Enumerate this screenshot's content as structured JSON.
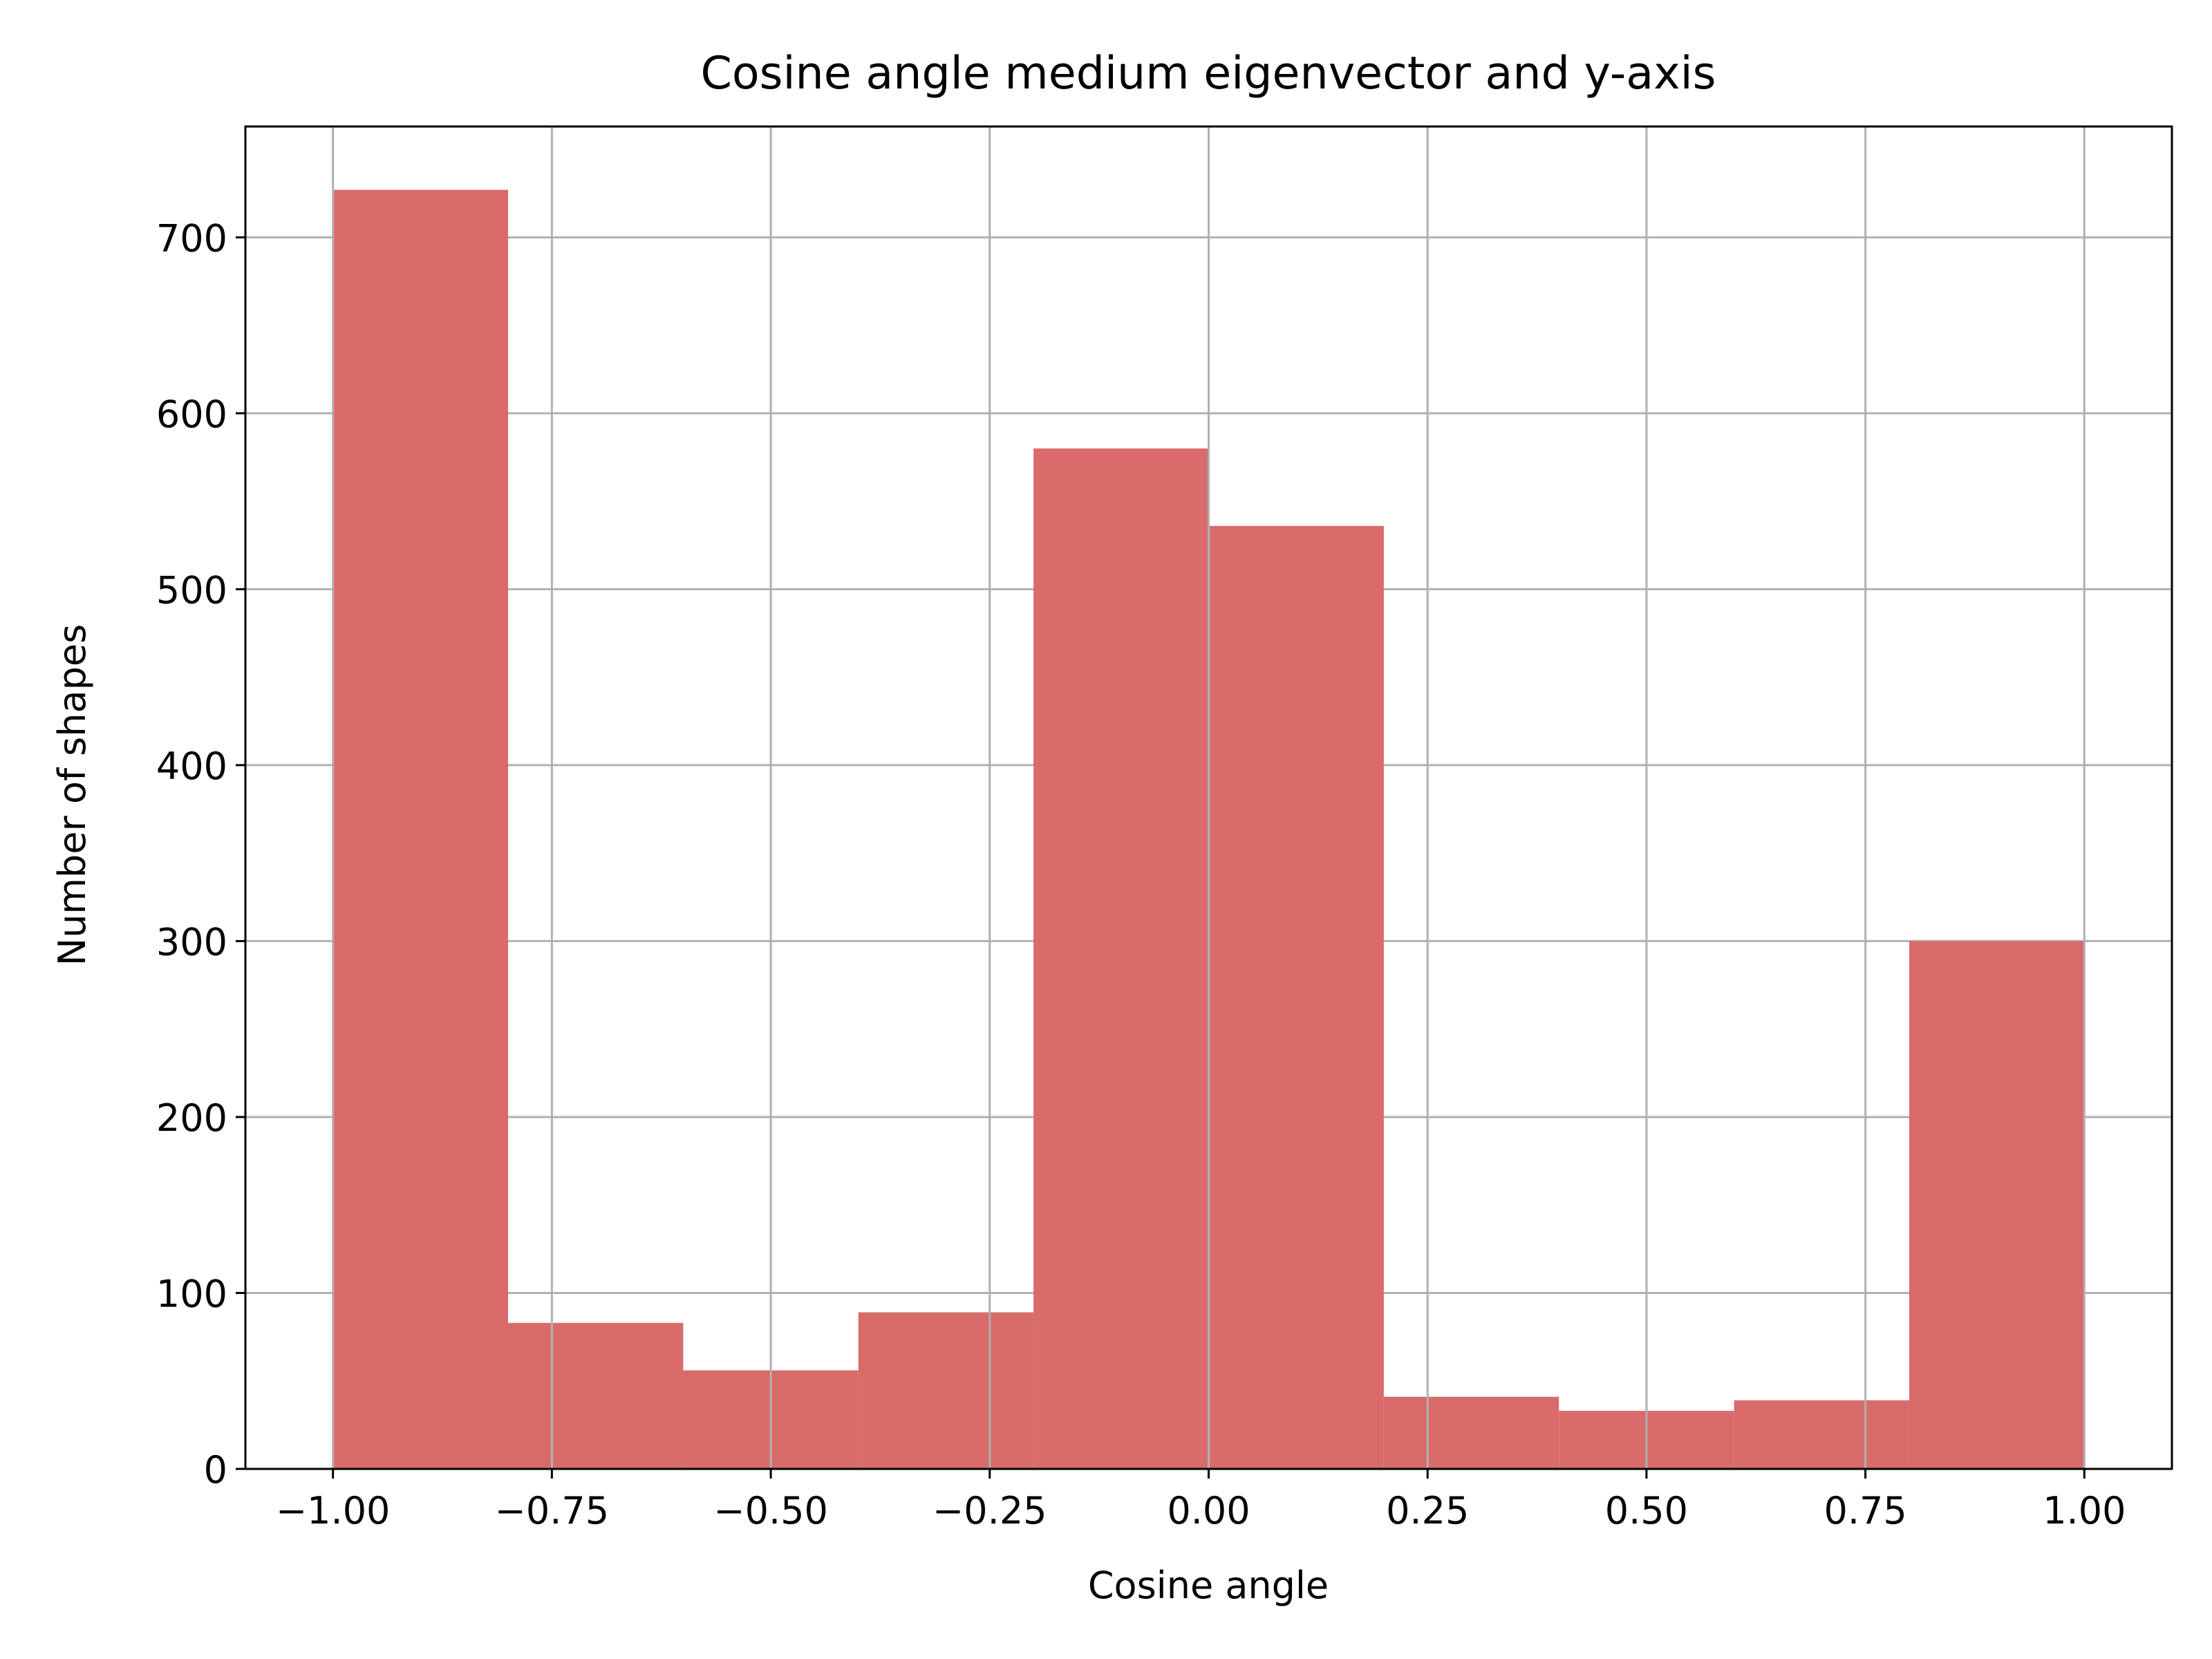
{
  "chart_data": {
    "type": "bar",
    "title": "Cosine angle medium eigenvector and y-axis",
    "xlabel": "Cosine angle",
    "ylabel": "Number of shapes",
    "bin_edges": [
      -1.0,
      -0.8,
      -0.6,
      -0.4,
      -0.2,
      0.0,
      0.2,
      0.4,
      0.6,
      0.8,
      1.0
    ],
    "values": [
      727,
      83,
      56,
      89,
      580,
      536,
      41,
      33,
      39,
      300
    ],
    "xlim": [
      -1.1,
      1.1
    ],
    "ylim": [
      0,
      763
    ],
    "xticks": [
      -1.0,
      -0.75,
      -0.5,
      -0.25,
      0.0,
      0.25,
      0.5,
      0.75,
      1.0
    ],
    "xtick_labels": [
      "−1.00",
      "−0.75",
      "−0.50",
      "−0.25",
      "0.00",
      "0.25",
      "0.50",
      "0.75",
      "1.00"
    ],
    "yticks": [
      0,
      100,
      200,
      300,
      400,
      500,
      600,
      700
    ],
    "ytick_labels": [
      "0",
      "100",
      "200",
      "300",
      "400",
      "500",
      "600",
      "700"
    ],
    "grid": true,
    "bar_color": "#d96b6b",
    "grid_color": "#b0b0b0"
  }
}
